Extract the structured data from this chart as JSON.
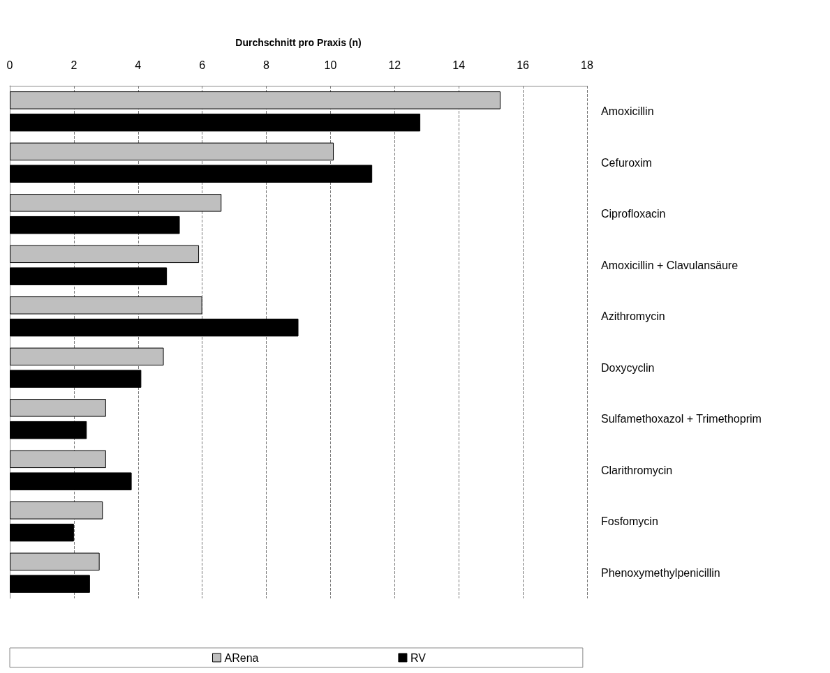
{
  "chart_data": {
    "type": "bar",
    "orientation": "horizontal",
    "xlabel": "Durchschnitt pro Praxis (n)",
    "categories": [
      "Amoxicillin",
      "Cefuroxim",
      "Ciprofloxacin",
      "Amoxicillin + Clavulansäure",
      "Azithromycin",
      "Doxycyclin",
      "Sulfamethoxazol + Trimethoprim",
      "Clarithromycin",
      "Fosfomycin",
      "Phenoxymethylpenicillin"
    ],
    "series": [
      {
        "name": "ARena",
        "color": "#bfbfbf",
        "values": [
          15.3,
          10.1,
          6.6,
          5.9,
          6.0,
          4.8,
          3.0,
          3.0,
          2.9,
          2.8
        ]
      },
      {
        "name": "RV",
        "color": "#000000",
        "values": [
          12.8,
          11.3,
          5.3,
          4.9,
          9.0,
          4.1,
          2.4,
          3.8,
          2.0,
          2.5
        ]
      }
    ],
    "xlim": [
      0,
      18
    ],
    "xticks": [
      0,
      2,
      4,
      6,
      8,
      10,
      12,
      14,
      16,
      18
    ],
    "grid": "x",
    "legend": "bottom"
  }
}
